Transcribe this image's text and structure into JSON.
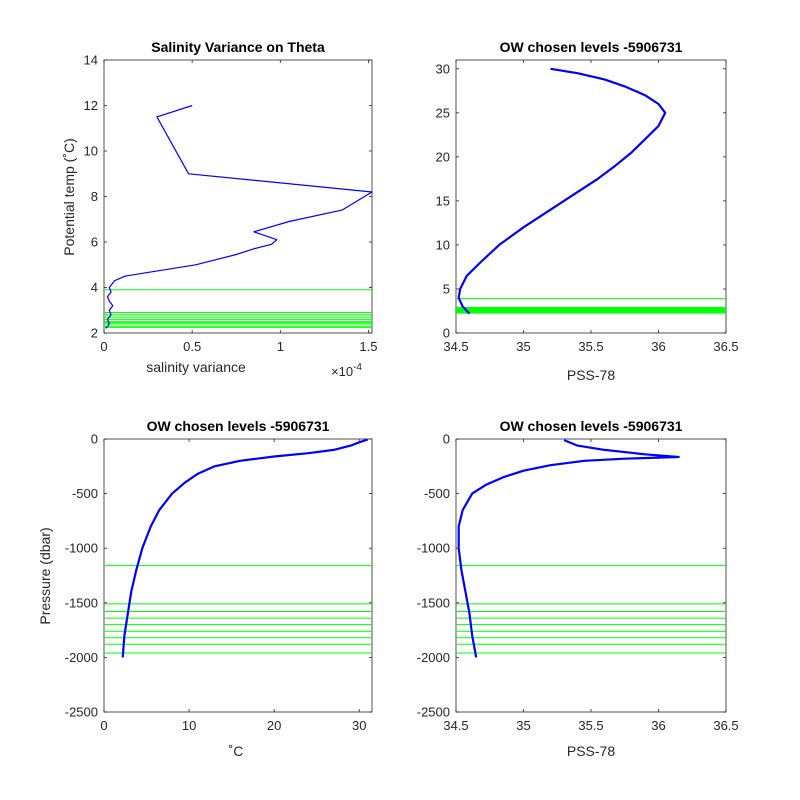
{
  "figure": {
    "background": "#ffffff",
    "axis_color": "#262626",
    "profile_color": "#0000ff",
    "level_color": "#00ff00"
  },
  "chart_data": [
    {
      "type": "line",
      "title": "Salinity Variance on Theta",
      "xlabel": "salinity variance",
      "ylabel": "Potential temp (˚C)",
      "x_exponent_label": "×10",
      "x_exponent_power": "-4",
      "xlim": [
        0,
        1.52
      ],
      "ylim": [
        2,
        14
      ],
      "xticks": [
        0,
        0.5,
        1,
        1.5
      ],
      "xtick_labels": [
        "0",
        "0.5",
        "1",
        "1.5"
      ],
      "yticks": [
        2,
        4,
        6,
        8,
        10,
        12,
        14
      ],
      "ytick_labels": [
        "2",
        "4",
        "6",
        "8",
        "10",
        "12",
        "14"
      ],
      "series": [
        {
          "x": [
            0.5,
            0.3,
            0.48,
            1.52,
            1.35,
            1.05,
            0.85,
            0.98,
            0.95,
            0.85,
            0.75,
            0.52,
            0.12,
            0.06,
            0.03,
            0.04,
            0.02,
            0.03,
            0.05,
            0.03,
            0.04,
            0.02,
            0.03,
            0.02,
            0.01
          ],
          "y": [
            12.0,
            11.5,
            9.0,
            8.2,
            7.4,
            6.9,
            6.45,
            6.1,
            5.9,
            5.7,
            5.45,
            5.0,
            4.5,
            4.3,
            4.0,
            3.8,
            3.6,
            3.4,
            3.2,
            3.0,
            2.8,
            2.6,
            2.4,
            2.3,
            2.2
          ]
        }
      ],
      "levels": [
        3.9,
        2.9,
        2.8,
        2.7,
        2.6,
        2.5,
        2.45,
        2.4,
        2.3,
        2.25
      ]
    },
    {
      "type": "line",
      "title": "OW chosen levels -5906731",
      "xlabel": "PSS-78",
      "ylabel": "",
      "xlim": [
        34.5,
        36.5
      ],
      "ylim": [
        0,
        31
      ],
      "xticks": [
        34.5,
        35,
        35.5,
        36,
        36.5
      ],
      "xtick_labels": [
        "34.5",
        "35",
        "35.5",
        "36",
        "36.5"
      ],
      "yticks": [
        0,
        5,
        10,
        15,
        20,
        25,
        30
      ],
      "ytick_labels": [
        "0",
        "5",
        "10",
        "15",
        "20",
        "25",
        "30"
      ],
      "series": [
        {
          "x": [
            34.6,
            34.55,
            34.52,
            34.53,
            34.58,
            34.68,
            34.82,
            35.0,
            35.2,
            35.4,
            35.55,
            35.68,
            35.8,
            35.9,
            36.0,
            36.05,
            36.0,
            35.9,
            35.75,
            35.6,
            35.4,
            35.2
          ],
          "y": [
            2.2,
            3.0,
            4.0,
            5.0,
            6.5,
            8.0,
            10.0,
            12.0,
            14.0,
            16.0,
            17.5,
            19.0,
            20.5,
            22.0,
            23.5,
            25.0,
            26.0,
            27.0,
            28.0,
            28.8,
            29.5,
            30.0
          ]
        }
      ],
      "levels": [
        3.9,
        2.9,
        2.8,
        2.7,
        2.6,
        2.5,
        2.45,
        2.4,
        2.3,
        2.25
      ]
    },
    {
      "type": "line",
      "title": "OW chosen levels -5906731",
      "xlabel": "˚C",
      "ylabel": "Pressure (dbar)",
      "xlim": [
        0,
        31.5
      ],
      "ylim": [
        -2500,
        0
      ],
      "xticks": [
        0,
        10,
        20,
        30
      ],
      "xtick_labels": [
        "0",
        "10",
        "20",
        "30"
      ],
      "yticks": [
        -2500,
        -2000,
        -1500,
        -1000,
        -500,
        0
      ],
      "ytick_labels": [
        "-2500",
        "-2000",
        "-1500",
        "-1000",
        "-500",
        "0"
      ],
      "series": [
        {
          "x": [
            2.2,
            2.4,
            2.8,
            3.2,
            3.8,
            4.5,
            5.5,
            6.5,
            8.0,
            9.5,
            11.0,
            13.0,
            16.0,
            20.0,
            24.0,
            27.0,
            29.0,
            30.0,
            31.0
          ],
          "y": [
            -2000,
            -1800,
            -1600,
            -1400,
            -1200,
            -1000,
            -800,
            -650,
            -500,
            -400,
            -320,
            -250,
            -200,
            -160,
            -130,
            -100,
            -60,
            -30,
            -5
          ]
        }
      ],
      "levels": [
        -1160,
        -1510,
        -1580,
        -1640,
        -1700,
        -1760,
        -1820,
        -1880,
        -1960
      ]
    },
    {
      "type": "line",
      "title": "OW chosen levels -5906731",
      "xlabel": "PSS-78",
      "ylabel": "",
      "xlim": [
        34.5,
        36.5
      ],
      "ylim": [
        -2500,
        0
      ],
      "xticks": [
        34.5,
        35,
        35.5,
        36,
        36.5
      ],
      "xtick_labels": [
        "34.5",
        "35",
        "35.5",
        "36",
        "36.5"
      ],
      "yticks": [
        -2500,
        -2000,
        -1500,
        -1000,
        -500,
        0
      ],
      "ytick_labels": [
        "-2500",
        "-2000",
        "-1500",
        "-1000",
        "-500",
        "0"
      ],
      "series": [
        {
          "x": [
            34.65,
            34.62,
            34.6,
            34.57,
            34.54,
            34.52,
            34.52,
            34.55,
            34.62,
            34.72,
            34.85,
            35.0,
            35.2,
            35.45,
            35.75,
            36.0,
            36.15,
            35.9,
            35.6,
            35.4,
            35.3
          ],
          "y": [
            -2000,
            -1800,
            -1600,
            -1400,
            -1200,
            -1000,
            -800,
            -650,
            -500,
            -420,
            -350,
            -290,
            -240,
            -200,
            -180,
            -170,
            -165,
            -140,
            -100,
            -60,
            -10
          ]
        }
      ],
      "levels": [
        -1160,
        -1510,
        -1580,
        -1640,
        -1700,
        -1760,
        -1820,
        -1880,
        -1960
      ]
    }
  ]
}
